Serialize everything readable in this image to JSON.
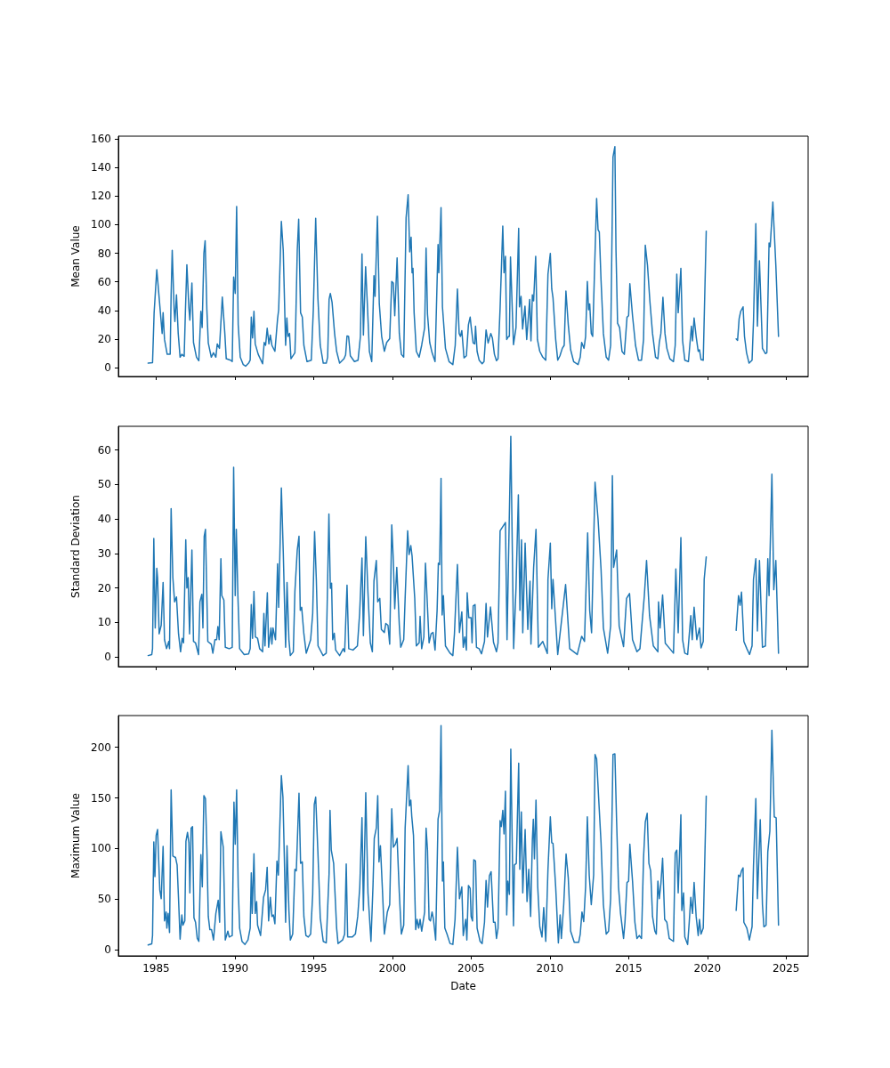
{
  "chart_data": [
    {
      "type": "line",
      "ylabel": "Mean Value",
      "color": "#1f77b4",
      "xlim": [
        1982.6,
        2026.4
      ],
      "xticks": [
        1985,
        1990,
        1995,
        2000,
        2005,
        2010,
        2015,
        2020,
        2025
      ],
      "ylim": [
        -6.2,
        161.9
      ],
      "yticks": [
        0,
        20,
        40,
        60,
        80,
        100,
        120,
        140,
        160
      ],
      "tick_labels": "y",
      "x": [
        1984.49,
        1984.77,
        1984.87,
        1985.04,
        1985.19,
        1985.38,
        1985.44,
        1985.53,
        1985.7,
        1985.89,
        1985.95,
        1986.02,
        1986.14,
        1986.19,
        1986.29,
        1986.4,
        1986.52,
        1986.63,
        1986.78,
        1986.86,
        1986.95,
        1987.08,
        1987.14,
        1987.27,
        1987.37,
        1987.56,
        1987.71,
        1987.84,
        1987.92,
        1988.03,
        1988.11,
        1988.22,
        1988.31,
        1988.5,
        1988.64,
        1988.79,
        1988.88,
        1989.02,
        1989.2,
        1989.36,
        1989.45,
        1989.73,
        1989.83,
        1989.92,
        1990.02,
        1990.11,
        1990.21,
        1990.34,
        1990.53,
        1990.68,
        1990.87,
        1990.97,
        1991.04,
        1991.12,
        1991.21,
        1991.29,
        1991.48,
        1991.76,
        1991.86,
        1991.95,
        1992.05,
        1992.16,
        1992.25,
        1992.35,
        1992.54,
        1992.71,
        1992.78,
        1992.95,
        1993.07,
        1993.22,
        1993.3,
        1993.37,
        1993.47,
        1993.56,
        1993.81,
        1993.86,
        1993.96,
        1994.05,
        1994.17,
        1994.28,
        1994.38,
        1994.58,
        1994.85,
        1994.98,
        1995.13,
        1995.27,
        1995.42,
        1995.61,
        1995.8,
        1995.89,
        1995.98,
        1996.06,
        1996.17,
        1996.33,
        1996.46,
        1996.65,
        1996.93,
        1997.03,
        1997.12,
        1997.22,
        1997.33,
        1997.59,
        1997.82,
        1997.97,
        1998.07,
        1998.16,
        1998.3,
        1998.41,
        1998.54,
        1998.69,
        1998.83,
        1998.9,
        1999.05,
        1999.17,
        1999.32,
        1999.49,
        1999.64,
        1999.83,
        1999.96,
        2000.06,
        2000.15,
        2000.3,
        2000.44,
        2000.57,
        2000.72,
        2000.87,
        2001.0,
        2001.1,
        2001.19,
        2001.25,
        2001.31,
        2001.38,
        2001.52,
        2001.7,
        2001.86,
        2002.05,
        2002.14,
        2002.23,
        2002.37,
        2002.52,
        2002.71,
        2002.9,
        2002.95,
        2003.09,
        2003.18,
        2003.37,
        2003.6,
        2003.84,
        2003.99,
        2004.13,
        2004.24,
        2004.32,
        2004.41,
        2004.55,
        2004.7,
        2004.83,
        2004.94,
        2005.0,
        2005.13,
        2005.23,
        2005.28,
        2005.38,
        2005.51,
        2005.7,
        2005.82,
        2005.95,
        2006.08,
        2006.25,
        2006.35,
        2006.48,
        2006.61,
        2006.71,
        2006.84,
        2007.01,
        2007.09,
        2007.18,
        2007.26,
        2007.37,
        2007.43,
        2007.5,
        2007.69,
        2007.85,
        2008.02,
        2008.07,
        2008.17,
        2008.27,
        2008.42,
        2008.53,
        2008.72,
        2008.8,
        2008.89,
        2008.97,
        2009.1,
        2009.21,
        2009.36,
        2009.55,
        2009.74,
        2009.88,
        2010.03,
        2010.12,
        2010.2,
        2010.37,
        2010.5,
        2010.64,
        2010.79,
        2010.91,
        2011.02,
        2011.17,
        2011.32,
        2011.51,
        2011.79,
        2011.93,
        2012.02,
        2012.17,
        2012.27,
        2012.38,
        2012.46,
        2012.53,
        2012.63,
        2012.72,
        2012.82,
        2012.97,
        2013.06,
        2013.14,
        2013.25,
        2013.4,
        2013.58,
        2013.73,
        2013.86,
        2014.01,
        2014.13,
        2014.2,
        2014.3,
        2014.43,
        2014.58,
        2014.73,
        2014.9,
        2015.0,
        2015.08,
        2015.25,
        2015.44,
        2015.63,
        2015.82,
        2015.95,
        2016.06,
        2016.2,
        2016.35,
        2016.52,
        2016.71,
        2016.86,
        2016.95,
        2017.05,
        2017.18,
        2017.31,
        2017.43,
        2017.62,
        2017.85,
        2017.96,
        2018.06,
        2018.15,
        2018.32,
        2018.43,
        2018.57,
        2018.8,
        2018.99,
        2019.06,
        2019.16,
        2019.29,
        2019.42,
        2019.5,
        2019.6,
        2019.74,
        2019.93,
        2020.9,
        2021.83,
        2021.92,
        2022.02,
        2022.12,
        2022.27,
        2022.36,
        2022.49,
        2022.65,
        2022.84,
        2022.93,
        2023.08,
        2023.18,
        2023.31,
        2023.5,
        2023.69,
        2023.78,
        2023.92,
        2023.99,
        2024.16,
        2024.35,
        2024.52
      ],
      "values": [
        3.1,
        3.5,
        38.4,
        68.5,
        48.8,
        23.9,
        38.4,
        19.7,
        9.3,
        9.3,
        50.9,
        82,
        40.5,
        32.2,
        50.9,
        23.9,
        7.3,
        9.3,
        7.9,
        40.5,
        72,
        41.5,
        33.2,
        59.2,
        17.6,
        7.3,
        4.8,
        39.4,
        28,
        80,
        88.8,
        40.5,
        17.2,
        7.3,
        10.4,
        7.3,
        16.6,
        13.5,
        49.4,
        23.9,
        6.2,
        5.2,
        4.2,
        63.3,
        51.9,
        112.7,
        30,
        7.3,
        2.1,
        1,
        3.1,
        5.2,
        35.3,
        20.8,
        39.4,
        16.6,
        9.3,
        2.7,
        17.6,
        15.6,
        27.6,
        16.6,
        22.8,
        15.6,
        11.4,
        34.2,
        40.5,
        102.3,
        82,
        15.6,
        34.7,
        21.8,
        23.9,
        6.2,
        10.4,
        30,
        82,
        103.8,
        38.4,
        35.3,
        15.6,
        4.2,
        5.2,
        40.5,
        104.4,
        48.8,
        15.6,
        3.1,
        3.1,
        7.3,
        47.7,
        51.9,
        45.7,
        23.9,
        11.4,
        3.1,
        6.2,
        8.9,
        22.2,
        21.8,
        8.3,
        4.2,
        5.2,
        21.8,
        79.5,
        22.8,
        70.6,
        44.6,
        11.4,
        4.2,
        64.3,
        49.8,
        105.9,
        44.6,
        21.8,
        11.4,
        17.6,
        20.3,
        60.2,
        59.2,
        36.3,
        76.8,
        23.9,
        9.3,
        7.3,
        104.8,
        121,
        81,
        91.3,
        66.4,
        69.5,
        38.4,
        11.4,
        7.3,
        15.6,
        28,
        83.6,
        37.4,
        17.6,
        10.4,
        4.2,
        86.1,
        66.4,
        112,
        42.5,
        13.5,
        4.2,
        2.1,
        15.6,
        55,
        23.9,
        21.8,
        25.9,
        6.8,
        8.3,
        30,
        35.3,
        29,
        17.2,
        16.6,
        29,
        11.4,
        5.2,
        2.7,
        4.2,
        26.4,
        17.2,
        23.9,
        20.8,
        9.3,
        4.8,
        6.2,
        41.5,
        99,
        66.4,
        77.8,
        19.7,
        21.8,
        21.8,
        77.4,
        16,
        28,
        97.5,
        42.5,
        49.8,
        27,
        43,
        19.7,
        47.7,
        18.7,
        50.9,
        46.7,
        77.8,
        19.7,
        11.4,
        7.3,
        5.2,
        65.4,
        79.9,
        55,
        48.8,
        19.7,
        5.2,
        8.3,
        13.5,
        15.6,
        53.5,
        30,
        12.5,
        4.2,
        2.1,
        7.3,
        17.6,
        13.5,
        21.8,
        60.2,
        40.5,
        44.6,
        23.9,
        21.8,
        61.2,
        118.3,
        96.5,
        94.9,
        61.2,
        23.9,
        7.3,
        5.2,
        15.6,
        147.4,
        154.6,
        82,
        31.1,
        28,
        11.4,
        9.3,
        35.3,
        36.3,
        58.7,
        36.3,
        15.6,
        5.2,
        5.2,
        19.7,
        85.7,
        71.6,
        46.7,
        23.9,
        7.3,
        6.2,
        17.6,
        23.9,
        49.2,
        23.9,
        13.5,
        6.2,
        4.2,
        15.6,
        65.4,
        38.4,
        69.5,
        18.7,
        5.2,
        4.2,
        29,
        18.7,
        34.7,
        21.8,
        11.4,
        12.5,
        5.6,
        5.2,
        95.5,
        null,
        20.1,
        19.1,
        34.2,
        39.4,
        42.5,
        21.8,
        10.4,
        3.1,
        5.2,
        32.2,
        100.7,
        29,
        74.7,
        13.5,
        9.8,
        10.4,
        87.2,
        84.5,
        115.8,
        71.6,
        21.8
      ]
    },
    {
      "type": "line",
      "ylabel": "Standard Deviation",
      "color": "#1f77b4",
      "xlim": [
        1982.6,
        2026.4
      ],
      "xticks": [
        1985,
        1990,
        1995,
        2000,
        2005,
        2010,
        2015,
        2020,
        2025
      ],
      "ylim": [
        -2.8,
        66.9
      ],
      "yticks": [
        0,
        10,
        20,
        30,
        40,
        50,
        60
      ],
      "tick_labels": "y",
      "x": [
        1984.49,
        1984.72,
        1984.77,
        1984.85,
        1984.94,
        1985.04,
        1985.09,
        1985.19,
        1985.32,
        1985.44,
        1985.53,
        1985.66,
        1985.8,
        1985.85,
        1985.95,
        1986.06,
        1986.17,
        1986.29,
        1986.42,
        1986.55,
        1986.65,
        1986.74,
        1986.88,
        1986.95,
        1987.03,
        1987.12,
        1987.27,
        1987.37,
        1987.5,
        1987.69,
        1987.78,
        1987.9,
        1987.97,
        1988.05,
        1988.13,
        1988.28,
        1988.5,
        1988.6,
        1988.73,
        1988.84,
        1988.92,
        1989.0,
        1989.11,
        1989.17,
        1989.3,
        1989.39,
        1989.64,
        1989.83,
        1989.92,
        1990.02,
        1990.09,
        1990.19,
        1990.3,
        1990.59,
        1990.87,
        1990.97,
        1991.04,
        1991.12,
        1991.21,
        1991.3,
        1991.44,
        1991.57,
        1991.76,
        1991.84,
        1991.91,
        1992.06,
        1992.14,
        1992.29,
        1992.35,
        1992.42,
        1992.58,
        1992.71,
        1992.78,
        1992.95,
        1993.07,
        1993.22,
        1993.31,
        1993.43,
        1993.52,
        1993.71,
        1993.81,
        1993.96,
        1994.07,
        1994.15,
        1994.24,
        1994.38,
        1994.53,
        1994.81,
        1994.94,
        1995.06,
        1995.17,
        1995.28,
        1995.6,
        1995.8,
        1995.97,
        1996.06,
        1996.14,
        1996.21,
        1996.31,
        1996.4,
        1996.65,
        1996.88,
        1996.97,
        1997.12,
        1997.23,
        1997.5,
        1997.78,
        1997.92,
        1998.07,
        1998.16,
        1998.31,
        1998.45,
        1998.6,
        1998.73,
        1998.83,
        1998.98,
        1999.07,
        1999.2,
        1999.3,
        1999.49,
        1999.58,
        1999.72,
        1999.83,
        1999.96,
        2000.06,
        2000.15,
        2000.28,
        2000.44,
        2000.53,
        2000.72,
        2000.81,
        2000.97,
        2001.06,
        2001.17,
        2001.25,
        2001.42,
        2001.52,
        2001.7,
        2001.76,
        2001.86,
        2002.0,
        2002.1,
        2002.2,
        2002.33,
        2002.46,
        2002.58,
        2002.71,
        2002.84,
        2002.92,
        2003.0,
        2003.09,
        2003.16,
        2003.24,
        2003.37,
        2003.66,
        2003.84,
        2003.94,
        2004.13,
        2004.26,
        2004.41,
        2004.5,
        2004.6,
        2004.7,
        2004.75,
        2004.85,
        2005.0,
        2005.06,
        2005.13,
        2005.25,
        2005.34,
        2005.51,
        2005.66,
        2005.85,
        2005.95,
        2006.04,
        2006.23,
        2006.42,
        2006.61,
        2006.71,
        2006.84,
        2007.18,
        2007.28,
        2007.52,
        2007.7,
        2007.85,
        2008.0,
        2008.1,
        2008.2,
        2008.28,
        2008.43,
        2008.6,
        2008.74,
        2008.8,
        2008.97,
        2009.12,
        2009.27,
        2009.55,
        2009.84,
        2009.88,
        2010.03,
        2010.12,
        2010.2,
        2010.5,
        2011.0,
        2011.26,
        2011.74,
        2012.02,
        2012.2,
        2012.4,
        2012.53,
        2012.65,
        2012.87,
        2013.06,
        2013.25,
        2013.4,
        2013.67,
        2013.86,
        2013.97,
        2014.05,
        2014.24,
        2014.4,
        2014.68,
        2014.87,
        2015.06,
        2015.25,
        2015.53,
        2015.72,
        2016.0,
        2016.14,
        2016.33,
        2016.57,
        2016.86,
        2016.9,
        2017.0,
        2017.16,
        2017.33,
        2017.62,
        2017.85,
        2018.0,
        2018.15,
        2018.32,
        2018.43,
        2018.57,
        2018.75,
        2018.95,
        2019.04,
        2019.16,
        2019.33,
        2019.5,
        2019.6,
        2019.74,
        2019.8,
        2019.93,
        2020.9,
        2021.83,
        2021.98,
        2022.08,
        2022.17,
        2022.32,
        2022.51,
        2022.68,
        2022.84,
        2022.93,
        2023.08,
        2023.18,
        2023.31,
        2023.5,
        2023.69,
        2023.84,
        2023.92,
        2024.1,
        2024.22,
        2024.35,
        2024.52
      ],
      "values": [
        0.4,
        0.7,
        2.4,
        34.4,
        8.4,
        25.7,
        23,
        6.7,
        9.2,
        21.6,
        5,
        2.4,
        4.5,
        2.4,
        43,
        23,
        16,
        17.4,
        6.7,
        1.5,
        5.4,
        4.1,
        34,
        20,
        23,
        6.7,
        31,
        4.5,
        4.1,
        0.7,
        16,
        18.2,
        8.4,
        35,
        37,
        4.5,
        3.7,
        1.1,
        5,
        5,
        8.8,
        5,
        28.5,
        17.8,
        16.5,
        2.8,
        2.4,
        2.8,
        55,
        17.8,
        37,
        17.8,
        2.4,
        0.7,
        0.9,
        2.4,
        15.2,
        5.4,
        19,
        5.8,
        5.4,
        2.4,
        1.5,
        12.6,
        3.2,
        18.6,
        2.8,
        8.4,
        3.7,
        8.4,
        5,
        27,
        14.4,
        49,
        30.6,
        2.8,
        21.6,
        5,
        0.4,
        1.5,
        19,
        31,
        35,
        13.5,
        14.4,
        6.7,
        1.1,
        5,
        12.6,
        36.4,
        22.5,
        3.2,
        0.4,
        1.1,
        41.5,
        19.9,
        21.4,
        5,
        6.9,
        2,
        0.4,
        2.4,
        1.5,
        20.8,
        2.4,
        2,
        3.2,
        12.6,
        28.7,
        6.2,
        34.9,
        18.6,
        4.1,
        1.5,
        22,
        28,
        16,
        17,
        8,
        7.1,
        9.7,
        9.2,
        3.7,
        38.3,
        28,
        14,
        26,
        9.2,
        2.8,
        5,
        17,
        36.6,
        29.7,
        32.3,
        29.3,
        17,
        3.2,
        4.1,
        11.8,
        2.4,
        5.8,
        27.2,
        17.4,
        4.1,
        6.7,
        7.1,
        2,
        13.5,
        27.2,
        26.8,
        51.8,
        12.2,
        17.8,
        3.2,
        1.1,
        0.4,
        6.7,
        26.8,
        7.1,
        13.1,
        2.8,
        5.8,
        2,
        18.6,
        11.4,
        11.4,
        4.1,
        14.8,
        15.2,
        2.8,
        2.4,
        0.9,
        4.5,
        15.5,
        5.8,
        14.5,
        4.3,
        1.5,
        4.1,
        36.6,
        39,
        5,
        64,
        2.4,
        20,
        47,
        13.5,
        34,
        7,
        33,
        8,
        22,
        3.7,
        26,
        37,
        2.8,
        4.5,
        1,
        22.5,
        33,
        14,
        22.5,
        0.7,
        21,
        2.4,
        0.7,
        6,
        4.5,
        36,
        13.5,
        7,
        50.7,
        40,
        25.5,
        8.4,
        1.1,
        9,
        52.6,
        26,
        31,
        9,
        3,
        17,
        18.4,
        5,
        1.5,
        2.4,
        17.8,
        28,
        12,
        3.2,
        1.5,
        16,
        8.4,
        18,
        4,
        2.4,
        1.1,
        25.5,
        7,
        34.6,
        5,
        1.1,
        0.7,
        12,
        5,
        14.4,
        5,
        8.4,
        2.6,
        4.5,
        22.5,
        29,
        null,
        7.7,
        17.8,
        15,
        18.8,
        4.5,
        2.4,
        0.7,
        3.2,
        22.5,
        28.5,
        7.5,
        28,
        2.8,
        3.2,
        28.5,
        17.8,
        53,
        19.5,
        28,
        1.1
      ]
    },
    {
      "type": "line",
      "xlabel": "Date",
      "ylabel": "Maximum Value",
      "color": "#1f77b4",
      "xlim": [
        1982.6,
        2026.4
      ],
      "xticks": [
        1985,
        1990,
        1995,
        2000,
        2005,
        2010,
        2015,
        2020,
        2025
      ],
      "ylim": [
        -6.1,
        231.4
      ],
      "yticks": [
        0,
        50,
        100,
        150,
        200
      ],
      "x": [
        1984.49,
        1984.72,
        1984.77,
        1984.85,
        1984.92,
        1985.0,
        1985.09,
        1985.23,
        1985.32,
        1985.44,
        1985.53,
        1985.63,
        1985.68,
        1985.76,
        1985.85,
        1985.95,
        1986.06,
        1986.23,
        1986.33,
        1986.42,
        1986.52,
        1986.63,
        1986.7,
        1986.82,
        1986.89,
        1986.99,
        1987.08,
        1987.14,
        1987.22,
        1987.31,
        1987.4,
        1987.5,
        1987.61,
        1987.71,
        1987.84,
        1987.93,
        1988.03,
        1988.13,
        1988.22,
        1988.31,
        1988.41,
        1988.52,
        1988.64,
        1988.79,
        1988.94,
        1989.03,
        1989.11,
        1989.26,
        1989.39,
        1989.55,
        1989.64,
        1989.83,
        1989.94,
        1990.02,
        1990.11,
        1990.21,
        1990.3,
        1990.45,
        1990.64,
        1990.83,
        1990.97,
        1991.04,
        1991.1,
        1991.21,
        1991.29,
        1991.38,
        1991.44,
        1991.63,
        1991.82,
        1991.95,
        1992.05,
        1992.14,
        1992.25,
        1992.35,
        1992.44,
        1992.54,
        1992.67,
        1992.76,
        1992.86,
        1992.95,
        1993.05,
        1993.14,
        1993.22,
        1993.31,
        1993.43,
        1993.52,
        1993.67,
        1993.81,
        1993.9,
        1994.07,
        1994.17,
        1994.28,
        1994.38,
        1994.51,
        1994.66,
        1994.81,
        1994.94,
        1995.04,
        1995.13,
        1995.27,
        1995.42,
        1995.61,
        1995.8,
        1995.98,
        1996.04,
        1996.12,
        1996.27,
        1996.46,
        1996.55,
        1996.84,
        1996.97,
        1997.07,
        1997.16,
        1997.45,
        1997.65,
        1997.8,
        1997.93,
        1998.07,
        1998.16,
        1998.31,
        1998.45,
        1998.64,
        1998.77,
        1998.85,
        1998.98,
        1999.07,
        1999.15,
        1999.24,
        1999.36,
        1999.49,
        1999.68,
        1999.83,
        1999.96,
        2000.06,
        2000.19,
        2000.3,
        2000.44,
        2000.57,
        2000.72,
        2000.81,
        2001.0,
        2001.08,
        2001.17,
        2001.23,
        2001.34,
        2001.48,
        2001.57,
        2001.67,
        2001.76,
        2001.86,
        2002.05,
        2002.14,
        2002.23,
        2002.33,
        2002.42,
        2002.52,
        2002.61,
        2002.75,
        2002.9,
        2003.0,
        2003.09,
        2003.18,
        2003.24,
        2003.33,
        2003.47,
        2003.66,
        2003.84,
        2003.98,
        2004.13,
        2004.26,
        2004.41,
        2004.5,
        2004.66,
        2004.73,
        2004.83,
        2004.94,
        2005.0,
        2005.09,
        2005.17,
        2005.28,
        2005.38,
        2005.57,
        2005.7,
        2005.85,
        2005.95,
        2006.04,
        2006.16,
        2006.27,
        2006.42,
        2006.52,
        2006.61,
        2006.71,
        2006.84,
        2006.92,
        2007.01,
        2007.09,
        2007.18,
        2007.26,
        2007.33,
        2007.43,
        2007.52,
        2007.69,
        2007.75,
        2007.87,
        2008.02,
        2008.09,
        2008.19,
        2008.28,
        2008.43,
        2008.55,
        2008.66,
        2008.78,
        2008.89,
        2008.95,
        2009.02,
        2009.12,
        2009.23,
        2009.36,
        2009.5,
        2009.61,
        2009.74,
        2009.88,
        2010.03,
        2010.12,
        2010.2,
        2010.37,
        2010.54,
        2010.65,
        2010.73,
        2010.88,
        2011.03,
        2011.17,
        2011.32,
        2011.55,
        2011.83,
        2011.93,
        2012.04,
        2012.15,
        2012.27,
        2012.38,
        2012.5,
        2012.63,
        2012.78,
        2012.87,
        2012.97,
        2013.1,
        2013.25,
        2013.4,
        2013.58,
        2013.73,
        2013.86,
        2014.01,
        2014.13,
        2014.24,
        2014.36,
        2014.49,
        2014.68,
        2014.77,
        2014.9,
        2015.0,
        2015.08,
        2015.25,
        2015.4,
        2015.53,
        2015.68,
        2015.82,
        2015.95,
        2016.06,
        2016.18,
        2016.29,
        2016.4,
        2016.52,
        2016.67,
        2016.76,
        2016.86,
        2016.95,
        2017.05,
        2017.16,
        2017.29,
        2017.43,
        2017.58,
        2017.85,
        2017.96,
        2018.06,
        2018.15,
        2018.32,
        2018.38,
        2018.49,
        2018.57,
        2018.75,
        2018.85,
        2018.95,
        2019.06,
        2019.16,
        2019.29,
        2019.42,
        2019.5,
        2019.6,
        2019.74,
        2019.93,
        2020.9,
        2021.83,
        2021.98,
        2022.08,
        2022.17,
        2022.27,
        2022.32,
        2022.51,
        2022.67,
        2022.84,
        2022.93,
        2023.08,
        2023.18,
        2023.36,
        2023.5,
        2023.59,
        2023.73,
        2023.84,
        2023.97,
        2024.1,
        2024.25,
        2024.37,
        2024.52
      ],
      "values": [
        4.7,
        5.8,
        14,
        106.6,
        72.2,
        113,
        118.8,
        59.1,
        50.4,
        102.2,
        28.5,
        37.3,
        21.3,
        35.8,
        16.9,
        158,
        92.6,
        91.1,
        83.8,
        50.4,
        10.5,
        34.4,
        24.2,
        28.5,
        107.1,
        115.9,
        105.7,
        56.2,
        120.2,
        121.7,
        31.4,
        27.1,
        11.1,
        8.2,
        94,
        62,
        152.3,
        149.3,
        99.9,
        32.9,
        19.8,
        19.8,
        9.6,
        35.8,
        48.9,
        27.1,
        116.7,
        101.3,
        9.6,
        18.3,
        12.5,
        14,
        145.9,
        104.2,
        158,
        62,
        21.3,
        8.2,
        5.2,
        9.6,
        21.3,
        76,
        35.8,
        94.9,
        35.8,
        47.5,
        24.2,
        14,
        51.8,
        59.1,
        81.5,
        28.5,
        51.8,
        32.9,
        34.4,
        25.6,
        87.6,
        73.7,
        126.1,
        172,
        150.8,
        91.1,
        27.1,
        102.8,
        38.7,
        9.6,
        15.4,
        79.5,
        78,
        154.6,
        85.3,
        86.8,
        32.9,
        14,
        12.5,
        15.4,
        54.7,
        143.5,
        150.8,
        96.9,
        31.4,
        8.2,
        6.7,
        75.1,
        137.7,
        98.4,
        85.3,
        21.3,
        6.1,
        9.6,
        15.4,
        84.7,
        12.5,
        12.5,
        15.4,
        32.9,
        62,
        130.4,
        38.7,
        155.2,
        56.2,
        8.2,
        63.5,
        110,
        120.2,
        152.3,
        86.8,
        102.8,
        62,
        15.4,
        37.3,
        44.5,
        139.2,
        101.3,
        104.2,
        110,
        56.2,
        15.4,
        24.2,
        120.2,
        182,
        142.1,
        147.9,
        131.9,
        113,
        19.8,
        30,
        21.3,
        30,
        18.3,
        37.3,
        120.2,
        98.4,
        30,
        28.5,
        37.3,
        30,
        9.6,
        129,
        137.7,
        221.5,
        67.8,
        86.8,
        21.3,
        15.4,
        6.1,
        5.2,
        30,
        101.3,
        50.4,
        62,
        14,
        30,
        9.6,
        63.5,
        60.6,
        32.9,
        28.5,
        88.8,
        87.6,
        21.3,
        8.2,
        6.1,
        27.1,
        68.4,
        42.2,
        73.1,
        77.1,
        27.1,
        27.1,
        11.1,
        21.3,
        127.5,
        121.7,
        137.7,
        114.4,
        156.6,
        34.4,
        67.8,
        54.7,
        198.3,
        23.6,
        83.8,
        85.3,
        184.3,
        79.5,
        136.2,
        56.2,
        118.8,
        47.5,
        79.5,
        32.9,
        108.6,
        129,
        89.7,
        147.9,
        62,
        22.7,
        12.5,
        41.6,
        8.2,
        79.5,
        131.3,
        105.7,
        105.1,
        62,
        6.7,
        34.4,
        11.1,
        44.5,
        94.6,
        70.7,
        18.3,
        7.3,
        7.3,
        15.4,
        37.3,
        27.7,
        62,
        131.3,
        73.7,
        44.5,
        73.7,
        193,
        188.6,
        149.3,
        105.7,
        44.5,
        15.4,
        18.3,
        50.4,
        193,
        193.6,
        126.1,
        62,
        35.8,
        11.1,
        27.1,
        66.4,
        67.8,
        104.2,
        67.8,
        27.1,
        11.1,
        14,
        11.1,
        91.1,
        126.1,
        134.8,
        85.3,
        78,
        32.9,
        18.3,
        15.4,
        67.8,
        50.4,
        64.9,
        90.5,
        30,
        27.1,
        11.1,
        8.2,
        95.5,
        98.4,
        56.2,
        133.3,
        38.7,
        56.2,
        12.5,
        5.2,
        27.1,
        51.8,
        35.8,
        66.4,
        32.9,
        14,
        30,
        15.4,
        21.3,
        151.7,
        null,
        38.7,
        73.7,
        72.2,
        78,
        80.9,
        27.1,
        21.3,
        9.6,
        22.7,
        82.4,
        149.3,
        50.4,
        128.4,
        44.5,
        22.7,
        24.2,
        96.9,
        117.3,
        216.9,
        131.3,
        130.4,
        24.2
      ]
    }
  ]
}
